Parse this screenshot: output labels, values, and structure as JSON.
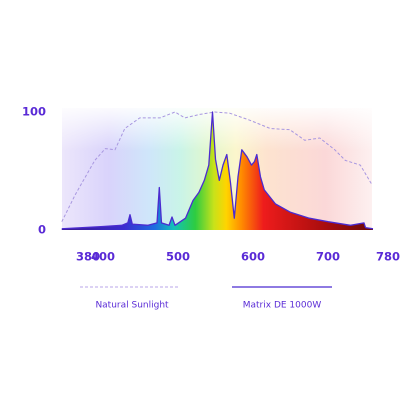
{
  "chart_data": {
    "type": "line",
    "xlim": [
      345,
      760
    ],
    "ylim": [
      0,
      100
    ],
    "xticks": [
      380,
      400,
      500,
      600,
      700,
      780
    ],
    "yticks": [
      0,
      100
    ],
    "series": [
      {
        "name": "Natural Sunlight",
        "color": "#a897e0",
        "dashed": true,
        "x": [
          345,
          363,
          389,
          403,
          416,
          429,
          449,
          476,
          496,
          509,
          529,
          549,
          569,
          596,
          623,
          649,
          669,
          689,
          709,
          723,
          743,
          759
        ],
        "values": [
          7,
          30,
          59,
          69,
          68,
          86,
          95,
          95,
          100,
          95,
          98,
          100,
          99,
          93,
          86,
          85,
          76,
          78,
          68,
          59,
          55,
          38
        ]
      },
      {
        "name": "Matrix DE 1000W",
        "color": "#4b2bd0",
        "dashed": false,
        "x": [
          345,
          400,
          425,
          433,
          436,
          439,
          460,
          472,
          475,
          478,
          488,
          492,
          496,
          510,
          520,
          528,
          535,
          541,
          546,
          550,
          555,
          560,
          565,
          570,
          575,
          580,
          585,
          592,
          598,
          602,
          605,
          610,
          615,
          630,
          650,
          675,
          700,
          730,
          748,
          750,
          760
        ],
        "values": [
          1,
          3,
          4,
          6,
          13,
          5,
          4,
          6,
          36,
          6,
          4,
          11,
          4,
          10,
          25,
          32,
          42,
          55,
          100,
          60,
          42,
          55,
          64,
          40,
          10,
          45,
          68,
          62,
          55,
          58,
          64,
          45,
          34,
          22,
          15,
          10,
          7,
          4,
          6,
          2,
          1
        ]
      }
    ]
  }
}
